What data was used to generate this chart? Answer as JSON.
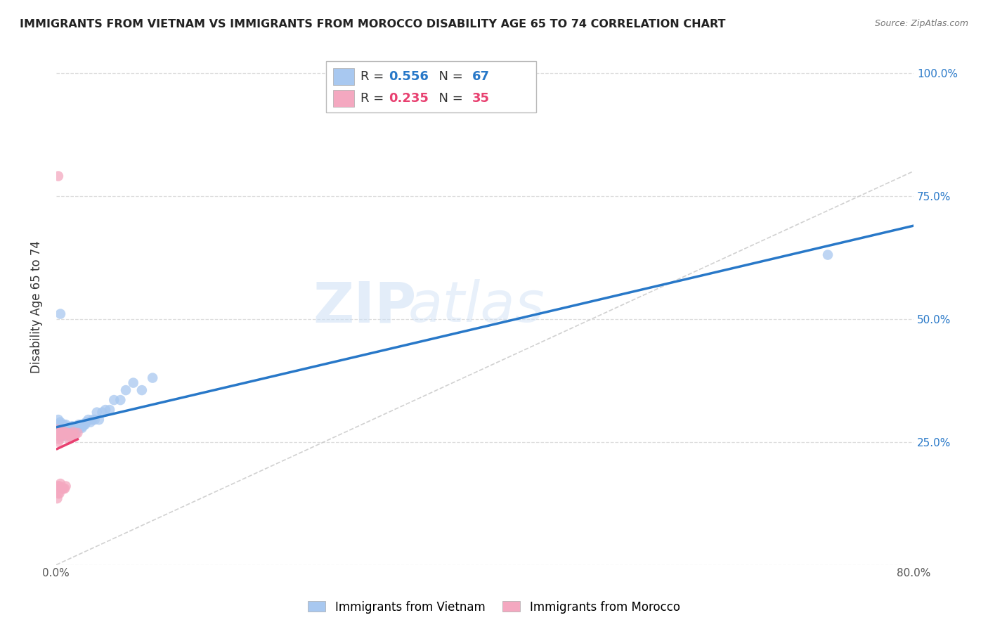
{
  "title": "IMMIGRANTS FROM VIETNAM VS IMMIGRANTS FROM MOROCCO DISABILITY AGE 65 TO 74 CORRELATION CHART",
  "source": "Source: ZipAtlas.com",
  "ylabel": "Disability Age 65 to 74",
  "xlim": [
    0.0,
    0.8
  ],
  "ylim": [
    0.0,
    1.05
  ],
  "ytick_positions": [
    0.0,
    0.25,
    0.5,
    0.75,
    1.0
  ],
  "yticklabels_right": [
    "",
    "25.0%",
    "50.0%",
    "75.0%",
    "100.0%"
  ],
  "vietnam_color": "#a8c8f0",
  "morocco_color": "#f4a8c0",
  "vietnam_line_color": "#2878c8",
  "morocco_line_color": "#e84070",
  "diagonal_color": "#cccccc",
  "R_vietnam": 0.556,
  "N_vietnam": 67,
  "R_morocco": 0.235,
  "N_morocco": 35,
  "watermark_zip": "ZIP",
  "watermark_atlas": "atlas",
  "legend_items": [
    "Immigrants from Vietnam",
    "Immigrants from Morocco"
  ],
  "vietnam_x": [
    0.001,
    0.002,
    0.002,
    0.003,
    0.003,
    0.003,
    0.004,
    0.004,
    0.004,
    0.005,
    0.005,
    0.005,
    0.006,
    0.006,
    0.006,
    0.007,
    0.007,
    0.007,
    0.008,
    0.008,
    0.008,
    0.009,
    0.009,
    0.009,
    0.01,
    0.01,
    0.011,
    0.011,
    0.012,
    0.012,
    0.013,
    0.013,
    0.014,
    0.015,
    0.015,
    0.016,
    0.016,
    0.017,
    0.018,
    0.018,
    0.019,
    0.02,
    0.021,
    0.022,
    0.023,
    0.024,
    0.025,
    0.026,
    0.027,
    0.028,
    0.03,
    0.032,
    0.034,
    0.036,
    0.038,
    0.04,
    0.043,
    0.046,
    0.05,
    0.054,
    0.06,
    0.065,
    0.072,
    0.08,
    0.09,
    0.72,
    0.004
  ],
  "vietnam_y": [
    0.27,
    0.285,
    0.295,
    0.26,
    0.275,
    0.28,
    0.265,
    0.278,
    0.29,
    0.268,
    0.275,
    0.285,
    0.265,
    0.272,
    0.282,
    0.268,
    0.275,
    0.285,
    0.262,
    0.27,
    0.28,
    0.268,
    0.275,
    0.285,
    0.268,
    0.278,
    0.27,
    0.28,
    0.268,
    0.278,
    0.268,
    0.278,
    0.268,
    0.272,
    0.282,
    0.268,
    0.278,
    0.272,
    0.268,
    0.278,
    0.278,
    0.282,
    0.285,
    0.278,
    0.285,
    0.278,
    0.282,
    0.285,
    0.285,
    0.29,
    0.295,
    0.29,
    0.295,
    0.295,
    0.31,
    0.295,
    0.31,
    0.315,
    0.315,
    0.335,
    0.335,
    0.355,
    0.37,
    0.355,
    0.38,
    0.63,
    0.51
  ],
  "morocco_x": [
    0.001,
    0.001,
    0.001,
    0.001,
    0.002,
    0.002,
    0.002,
    0.002,
    0.003,
    0.003,
    0.003,
    0.003,
    0.004,
    0.004,
    0.004,
    0.005,
    0.005,
    0.006,
    0.006,
    0.007,
    0.007,
    0.008,
    0.008,
    0.009,
    0.009,
    0.01,
    0.011,
    0.012,
    0.013,
    0.014,
    0.015,
    0.016,
    0.018,
    0.02,
    0.002
  ],
  "morocco_y": [
    0.275,
    0.27,
    0.155,
    0.135,
    0.27,
    0.25,
    0.16,
    0.145,
    0.265,
    0.255,
    0.16,
    0.145,
    0.265,
    0.26,
    0.165,
    0.265,
    0.155,
    0.27,
    0.155,
    0.265,
    0.155,
    0.27,
    0.155,
    0.265,
    0.16,
    0.268,
    0.268,
    0.255,
    0.26,
    0.26,
    0.265,
    0.27,
    0.265,
    0.268,
    0.79
  ]
}
